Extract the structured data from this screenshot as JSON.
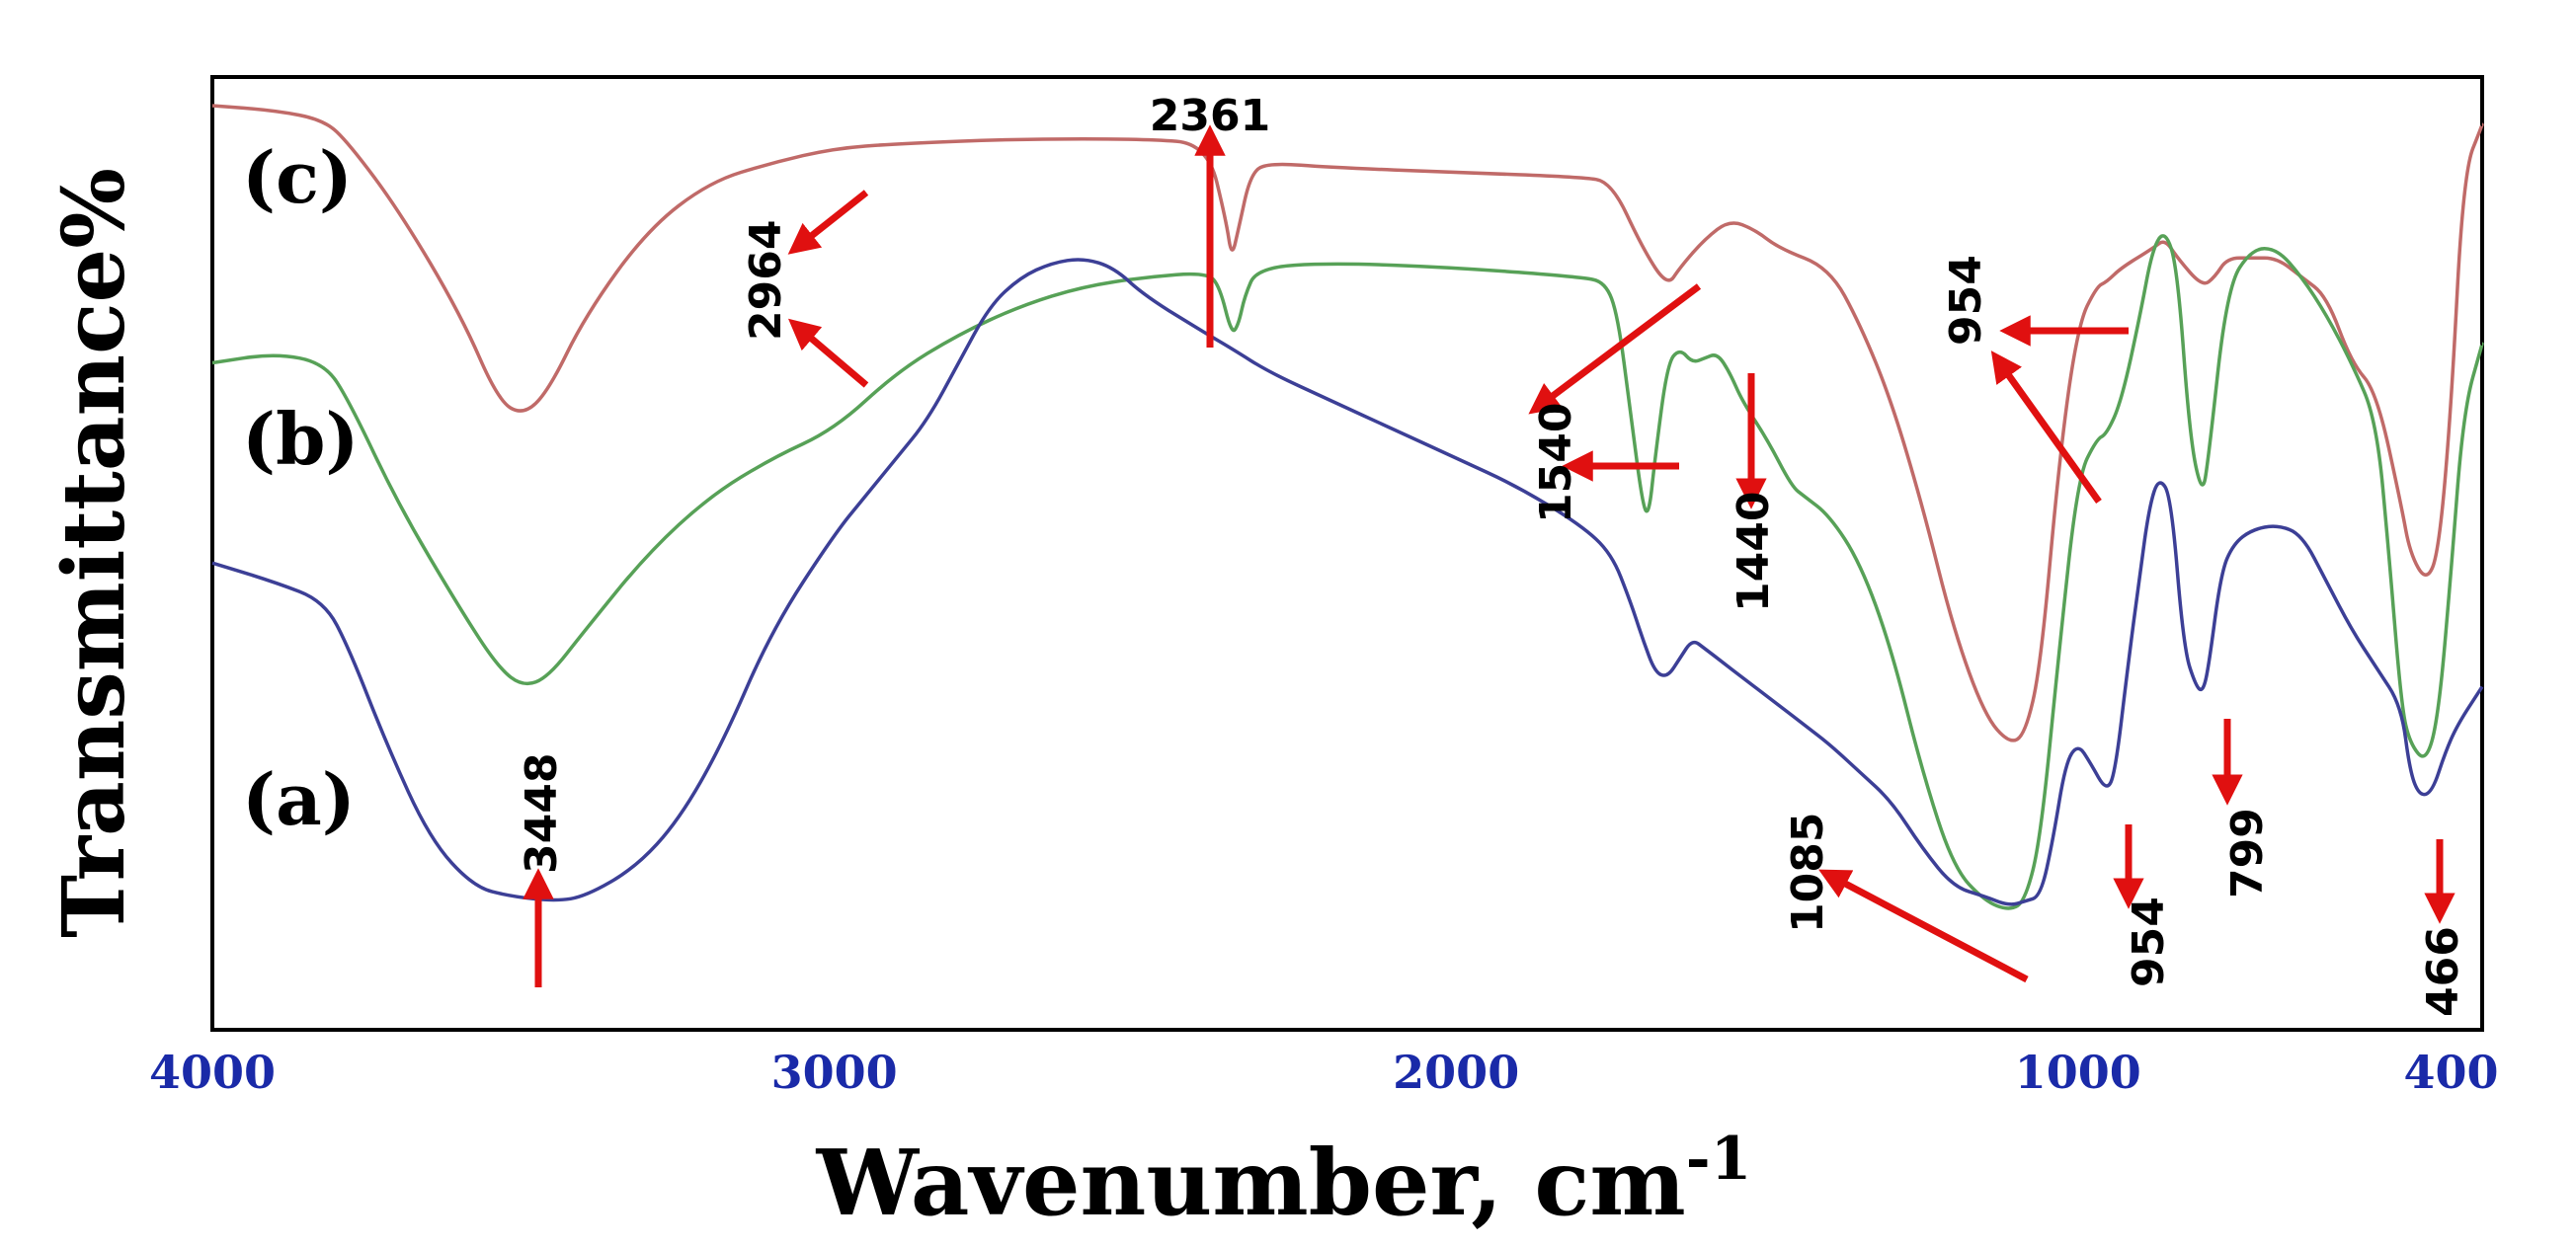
{
  "chart_data": {
    "type": "line",
    "title": "",
    "xlabel": "Wavenumber, cm",
    "xlabel_sup": "-1",
    "ylabel": "Transmittance%",
    "xlim": [
      4000,
      350
    ],
    "x_ticks": [
      4000,
      3000,
      2000,
      1000,
      400
    ],
    "y_ticks": [],
    "grid": false,
    "panel_labels": [
      "(c)",
      "(b)",
      "(a)"
    ],
    "series": [
      {
        "name": "(c)",
        "color": "#c06a68",
        "points": [
          [
            4000,
            0.97
          ],
          [
            3900,
            0.965
          ],
          [
            3820,
            0.955
          ],
          [
            3780,
            0.93
          ],
          [
            3700,
            0.86
          ],
          [
            3600,
            0.75
          ],
          [
            3540,
            0.66
          ],
          [
            3500,
            0.645
          ],
          [
            3460,
            0.67
          ],
          [
            3400,
            0.75
          ],
          [
            3300,
            0.84
          ],
          [
            3200,
            0.89
          ],
          [
            3100,
            0.91
          ],
          [
            3000,
            0.925
          ],
          [
            2900,
            0.93
          ],
          [
            2700,
            0.935
          ],
          [
            2500,
            0.935
          ],
          [
            2400,
            0.93
          ],
          [
            2370,
            0.85
          ],
          [
            2361,
            0.81
          ],
          [
            2350,
            0.84
          ],
          [
            2330,
            0.9
          ],
          [
            2300,
            0.91
          ],
          [
            2200,
            0.905
          ],
          [
            2000,
            0.9
          ],
          [
            1800,
            0.895
          ],
          [
            1750,
            0.89
          ],
          [
            1700,
            0.82
          ],
          [
            1660,
            0.78
          ],
          [
            1640,
            0.8
          ],
          [
            1600,
            0.83
          ],
          [
            1560,
            0.85
          ],
          [
            1520,
            0.84
          ],
          [
            1480,
            0.82
          ],
          [
            1400,
            0.8
          ],
          [
            1350,
            0.74
          ],
          [
            1300,
            0.66
          ],
          [
            1250,
            0.55
          ],
          [
            1200,
            0.42
          ],
          [
            1150,
            0.33
          ],
          [
            1110,
            0.3
          ],
          [
            1085,
            0.31
          ],
          [
            1060,
            0.38
          ],
          [
            1030,
            0.6
          ],
          [
            1000,
            0.74
          ],
          [
            970,
            0.78
          ],
          [
            954,
            0.785
          ],
          [
            930,
            0.8
          ],
          [
            880,
            0.82
          ],
          [
            860,
            0.83
          ],
          [
            840,
            0.81
          ],
          [
            800,
            0.78
          ],
          [
            780,
            0.79
          ],
          [
            760,
            0.81
          ],
          [
            720,
            0.81
          ],
          [
            680,
            0.81
          ],
          [
            640,
            0.79
          ],
          [
            600,
            0.77
          ],
          [
            560,
            0.7
          ],
          [
            520,
            0.67
          ],
          [
            480,
            0.55
          ],
          [
            466,
            0.5
          ],
          [
            440,
            0.47
          ],
          [
            420,
            0.5
          ],
          [
            400,
            0.65
          ],
          [
            380,
            0.9
          ],
          [
            350,
            0.95
          ]
        ]
      },
      {
        "name": "(b)",
        "color": "#57a157",
        "points": [
          [
            4000,
            0.7
          ],
          [
            3900,
            0.71
          ],
          [
            3820,
            0.7
          ],
          [
            3780,
            0.66
          ],
          [
            3700,
            0.55
          ],
          [
            3600,
            0.44
          ],
          [
            3540,
            0.38
          ],
          [
            3500,
            0.36
          ],
          [
            3460,
            0.37
          ],
          [
            3400,
            0.42
          ],
          [
            3300,
            0.5
          ],
          [
            3200,
            0.56
          ],
          [
            3100,
            0.6
          ],
          [
            3000,
            0.63
          ],
          [
            2900,
            0.69
          ],
          [
            2800,
            0.73
          ],
          [
            2700,
            0.76
          ],
          [
            2600,
            0.78
          ],
          [
            2500,
            0.79
          ],
          [
            2400,
            0.795
          ],
          [
            2380,
            0.78
          ],
          [
            2361,
            0.73
          ],
          [
            2350,
            0.74
          ],
          [
            2340,
            0.77
          ],
          [
            2320,
            0.8
          ],
          [
            2200,
            0.805
          ],
          [
            2000,
            0.8
          ],
          [
            1800,
            0.79
          ],
          [
            1760,
            0.785
          ],
          [
            1740,
            0.75
          ],
          [
            1720,
            0.65
          ],
          [
            1700,
            0.55
          ],
          [
            1690,
            0.54
          ],
          [
            1680,
            0.6
          ],
          [
            1660,
            0.7
          ],
          [
            1640,
            0.715
          ],
          [
            1620,
            0.7
          ],
          [
            1600,
            0.705
          ],
          [
            1580,
            0.71
          ],
          [
            1560,
            0.69
          ],
          [
            1540,
            0.66
          ],
          [
            1500,
            0.62
          ],
          [
            1460,
            0.57
          ],
          [
            1440,
            0.56
          ],
          [
            1400,
            0.54
          ],
          [
            1350,
            0.49
          ],
          [
            1300,
            0.4
          ],
          [
            1250,
            0.27
          ],
          [
            1200,
            0.17
          ],
          [
            1150,
            0.135
          ],
          [
            1110,
            0.125
          ],
          [
            1085,
            0.135
          ],
          [
            1060,
            0.2
          ],
          [
            1030,
            0.4
          ],
          [
            1000,
            0.58
          ],
          [
            970,
            0.62
          ],
          [
            954,
            0.625
          ],
          [
            930,
            0.66
          ],
          [
            900,
            0.75
          ],
          [
            880,
            0.82
          ],
          [
            860,
            0.84
          ],
          [
            840,
            0.8
          ],
          [
            820,
            0.62
          ],
          [
            800,
            0.56
          ],
          [
            790,
            0.6
          ],
          [
            760,
            0.78
          ],
          [
            720,
            0.82
          ],
          [
            680,
            0.82
          ],
          [
            640,
            0.79
          ],
          [
            600,
            0.75
          ],
          [
            560,
            0.7
          ],
          [
            520,
            0.64
          ],
          [
            500,
            0.5
          ],
          [
            480,
            0.34
          ],
          [
            466,
            0.3
          ],
          [
            440,
            0.28
          ],
          [
            420,
            0.33
          ],
          [
            400,
            0.48
          ],
          [
            380,
            0.65
          ],
          [
            350,
            0.72
          ]
        ]
      },
      {
        "name": "(a)",
        "color": "#3c3f96",
        "points": [
          [
            4000,
            0.49
          ],
          [
            3900,
            0.47
          ],
          [
            3820,
            0.45
          ],
          [
            3780,
            0.4
          ],
          [
            3720,
            0.3
          ],
          [
            3650,
            0.2
          ],
          [
            3580,
            0.15
          ],
          [
            3520,
            0.14
          ],
          [
            3448,
            0.135
          ],
          [
            3400,
            0.14
          ],
          [
            3320,
            0.17
          ],
          [
            3250,
            0.22
          ],
          [
            3180,
            0.3
          ],
          [
            3100,
            0.42
          ],
          [
            3000,
            0.52
          ],
          [
            2950,
            0.56
          ],
          [
            2900,
            0.6
          ],
          [
            2850,
            0.64
          ],
          [
            2800,
            0.7
          ],
          [
            2750,
            0.76
          ],
          [
            2700,
            0.79
          ],
          [
            2650,
            0.805
          ],
          [
            2600,
            0.81
          ],
          [
            2550,
            0.8
          ],
          [
            2500,
            0.77
          ],
          [
            2400,
            0.73
          ],
          [
            2361,
            0.715
          ],
          [
            2300,
            0.69
          ],
          [
            2200,
            0.66
          ],
          [
            2100,
            0.63
          ],
          [
            2000,
            0.6
          ],
          [
            1900,
            0.57
          ],
          [
            1800,
            0.53
          ],
          [
            1750,
            0.5
          ],
          [
            1720,
            0.45
          ],
          [
            1700,
            0.41
          ],
          [
            1680,
            0.375
          ],
          [
            1660,
            0.37
          ],
          [
            1640,
            0.39
          ],
          [
            1620,
            0.41
          ],
          [
            1600,
            0.4
          ],
          [
            1570,
            0.385
          ],
          [
            1540,
            0.37
          ],
          [
            1500,
            0.35
          ],
          [
            1460,
            0.33
          ],
          [
            1440,
            0.32
          ],
          [
            1400,
            0.3
          ],
          [
            1350,
            0.27
          ],
          [
            1300,
            0.24
          ],
          [
            1250,
            0.19
          ],
          [
            1200,
            0.15
          ],
          [
            1150,
            0.14
          ],
          [
            1110,
            0.13
          ],
          [
            1085,
            0.135
          ],
          [
            1060,
            0.14
          ],
          [
            1040,
            0.2
          ],
          [
            1020,
            0.28
          ],
          [
            1000,
            0.3
          ],
          [
            980,
            0.28
          ],
          [
            954,
            0.25
          ],
          [
            940,
            0.27
          ],
          [
            920,
            0.38
          ],
          [
            900,
            0.48
          ],
          [
            885,
            0.55
          ],
          [
            870,
            0.58
          ],
          [
            850,
            0.56
          ],
          [
            830,
            0.4
          ],
          [
            810,
            0.36
          ],
          [
            799,
            0.355
          ],
          [
            790,
            0.38
          ],
          [
            770,
            0.48
          ],
          [
            750,
            0.51
          ],
          [
            720,
            0.525
          ],
          [
            680,
            0.53
          ],
          [
            640,
            0.52
          ],
          [
            600,
            0.47
          ],
          [
            560,
            0.42
          ],
          [
            520,
            0.38
          ],
          [
            480,
            0.34
          ],
          [
            466,
            0.27
          ],
          [
            450,
            0.245
          ],
          [
            430,
            0.25
          ],
          [
            410,
            0.29
          ],
          [
            390,
            0.32
          ],
          [
            350,
            0.36
          ]
        ]
      }
    ],
    "annotations": [
      {
        "text": "2361",
        "series": "(b)"
      },
      {
        "text": "2964",
        "series": "(c)"
      },
      {
        "text": "1540",
        "series": "(b)"
      },
      {
        "text": "1440",
        "series": "(b)"
      },
      {
        "text": "954",
        "series": "(c)"
      },
      {
        "text": "3448",
        "series": "(a)"
      },
      {
        "text": "1085",
        "series": "(a)"
      },
      {
        "text": "954",
        "series": "(a)"
      },
      {
        "text": "799",
        "series": "(a)"
      },
      {
        "text": "466",
        "series": "(a)"
      }
    ]
  }
}
